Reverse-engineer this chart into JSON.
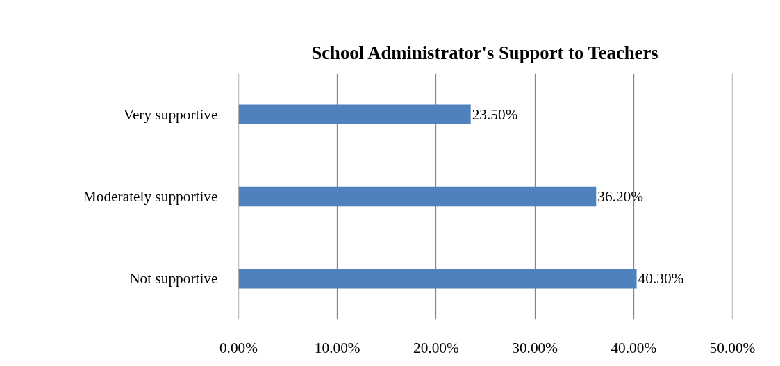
{
  "chart_data": {
    "type": "bar",
    "orientation": "horizontal",
    "title": "School Administrator's Support to Teachers",
    "categories": [
      "Very supportive",
      "Moderately supportive",
      "Not supportive"
    ],
    "values": [
      23.5,
      36.2,
      40.3
    ],
    "value_labels": [
      "23.50%",
      "36.20%",
      "40.30%"
    ],
    "color": "#4f81bd",
    "xlim": [
      0,
      50
    ],
    "xticks": [
      {
        "value": 0,
        "label": "0.00%"
      },
      {
        "value": 10,
        "label": "10.00%"
      },
      {
        "value": 20,
        "label": "20.00%"
      },
      {
        "value": 30,
        "label": "30.00%"
      },
      {
        "value": 40,
        "label": "40.00%"
      },
      {
        "value": 50,
        "label": "50.00%"
      }
    ],
    "grid": "x"
  }
}
